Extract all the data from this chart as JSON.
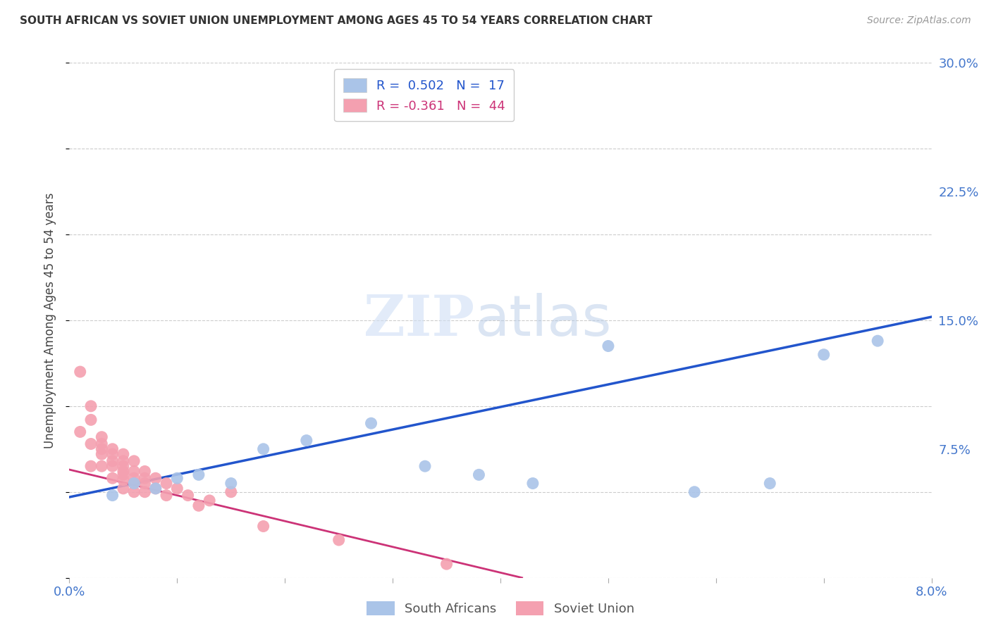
{
  "title": "SOUTH AFRICAN VS SOVIET UNION UNEMPLOYMENT AMONG AGES 45 TO 54 YEARS CORRELATION CHART",
  "source": "Source: ZipAtlas.com",
  "ylabel": "Unemployment Among Ages 45 to 54 years",
  "xlim": [
    0.0,
    0.08
  ],
  "ylim": [
    0.0,
    0.3
  ],
  "xticks": [
    0.0,
    0.01,
    0.02,
    0.03,
    0.04,
    0.05,
    0.06,
    0.07,
    0.08
  ],
  "xtick_labels": [
    "0.0%",
    "",
    "",
    "",
    "",
    "",
    "",
    "",
    "8.0%"
  ],
  "ytick_labels_right": [
    "",
    "7.5%",
    "15.0%",
    "22.5%",
    "30.0%"
  ],
  "yticks_right": [
    0.0,
    0.075,
    0.15,
    0.225,
    0.3
  ],
  "blue_R": 0.502,
  "blue_N": 17,
  "pink_R": -0.361,
  "pink_N": 44,
  "blue_color": "#aac4e8",
  "blue_line_color": "#2255cc",
  "pink_color": "#f4a0b0",
  "pink_line_color": "#cc3377",
  "blue_scatter_x": [
    0.004,
    0.006,
    0.008,
    0.01,
    0.012,
    0.015,
    0.018,
    0.022,
    0.028,
    0.033,
    0.038,
    0.043,
    0.05,
    0.058,
    0.065,
    0.07,
    0.075
  ],
  "blue_scatter_y": [
    0.048,
    0.055,
    0.052,
    0.058,
    0.06,
    0.055,
    0.075,
    0.08,
    0.09,
    0.065,
    0.06,
    0.055,
    0.135,
    0.05,
    0.055,
    0.13,
    0.138
  ],
  "pink_scatter_x": [
    0.001,
    0.001,
    0.002,
    0.002,
    0.002,
    0.002,
    0.003,
    0.003,
    0.003,
    0.003,
    0.003,
    0.004,
    0.004,
    0.004,
    0.004,
    0.004,
    0.005,
    0.005,
    0.005,
    0.005,
    0.005,
    0.005,
    0.005,
    0.006,
    0.006,
    0.006,
    0.006,
    0.006,
    0.007,
    0.007,
    0.007,
    0.007,
    0.008,
    0.008,
    0.009,
    0.009,
    0.01,
    0.011,
    0.012,
    0.013,
    0.015,
    0.018,
    0.025,
    0.035
  ],
  "pink_scatter_y": [
    0.12,
    0.085,
    0.1,
    0.092,
    0.078,
    0.065,
    0.082,
    0.078,
    0.075,
    0.072,
    0.065,
    0.075,
    0.072,
    0.068,
    0.065,
    0.058,
    0.072,
    0.068,
    0.065,
    0.062,
    0.06,
    0.057,
    0.052,
    0.068,
    0.062,
    0.058,
    0.055,
    0.05,
    0.062,
    0.058,
    0.055,
    0.05,
    0.058,
    0.052,
    0.055,
    0.048,
    0.052,
    0.048,
    0.042,
    0.045,
    0.05,
    0.03,
    0.022,
    0.008
  ],
  "blue_line_x0": 0.0,
  "blue_line_y0": 0.047,
  "blue_line_x1": 0.08,
  "blue_line_y1": 0.152,
  "pink_line_x0": 0.0,
  "pink_line_y0": 0.063,
  "pink_line_x1": 0.042,
  "pink_line_y1": 0.0,
  "watermark_zip": "ZIP",
  "watermark_atlas": "atlas",
  "background_color": "#ffffff",
  "grid_color": "#cccccc"
}
